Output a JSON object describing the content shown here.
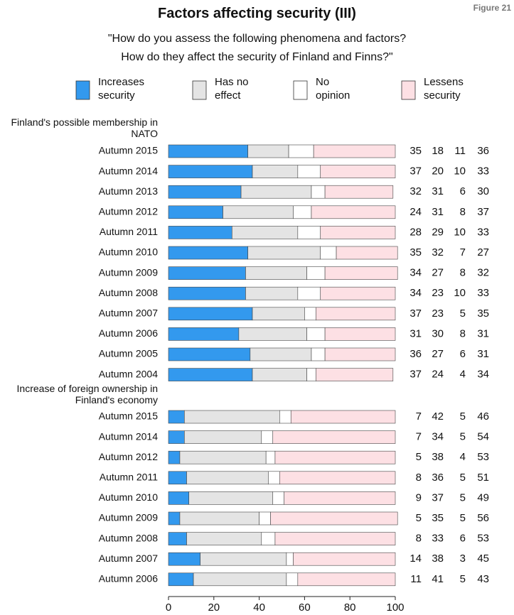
{
  "chart_data": {
    "type": "bar",
    "orientation": "horizontal",
    "stacked": true,
    "title": "Factors affecting security  (III)",
    "figure_label": "Figure 21",
    "subtitle": [
      "\"How do you assess the following phenomena and factors?",
      "How do they affect the security of Finland and Finns?\""
    ],
    "series": [
      {
        "name": "Increases security",
        "color": "#3399ee"
      },
      {
        "name": "Has no effect",
        "color": "#e4e4e4"
      },
      {
        "name": "No opinion",
        "color": "#ffffff"
      },
      {
        "name": "Lessens security",
        "color": "#fde0e4"
      }
    ],
    "groups": [
      {
        "label": "Finland's possible membership in NATO",
        "categories": [
          "Autumn 2015",
          "Autumn 2014",
          "Autumn 2013",
          "Autumn 2012",
          "Autumn 2011",
          "Autumn 2010",
          "Autumn 2009",
          "Autumn 2008",
          "Autumn 2007",
          "Autumn 2006",
          "Autumn 2005",
          "Autumn 2004"
        ],
        "values": [
          [
            35,
            18,
            11,
            36
          ],
          [
            37,
            20,
            10,
            33
          ],
          [
            32,
            31,
            6,
            30
          ],
          [
            24,
            31,
            8,
            37
          ],
          [
            28,
            29,
            10,
            33
          ],
          [
            35,
            32,
            7,
            27
          ],
          [
            34,
            27,
            8,
            32
          ],
          [
            34,
            23,
            10,
            33
          ],
          [
            37,
            23,
            5,
            35
          ],
          [
            31,
            30,
            8,
            31
          ],
          [
            36,
            27,
            6,
            31
          ],
          [
            37,
            24,
            4,
            34
          ]
        ]
      },
      {
        "label": "Increase of foreign ownership in Finland's economy",
        "categories": [
          "Autumn 2015",
          "Autumn 2014",
          "Autumn 2012",
          "Autumn 2011",
          "Autumn 2010",
          "Autumn 2009",
          "Autumn 2008",
          "Autumn 2007",
          "Autumn 2006"
        ],
        "values": [
          [
            7,
            42,
            5,
            46
          ],
          [
            7,
            34,
            5,
            54
          ],
          [
            5,
            38,
            4,
            53
          ],
          [
            8,
            36,
            5,
            51
          ],
          [
            9,
            37,
            5,
            49
          ],
          [
            5,
            35,
            5,
            56
          ],
          [
            8,
            33,
            6,
            53
          ],
          [
            14,
            38,
            3,
            45
          ],
          [
            11,
            41,
            5,
            43
          ]
        ]
      }
    ],
    "xlim": [
      0,
      100
    ],
    "xticks": [
      0,
      20,
      40,
      60,
      80,
      100
    ]
  }
}
